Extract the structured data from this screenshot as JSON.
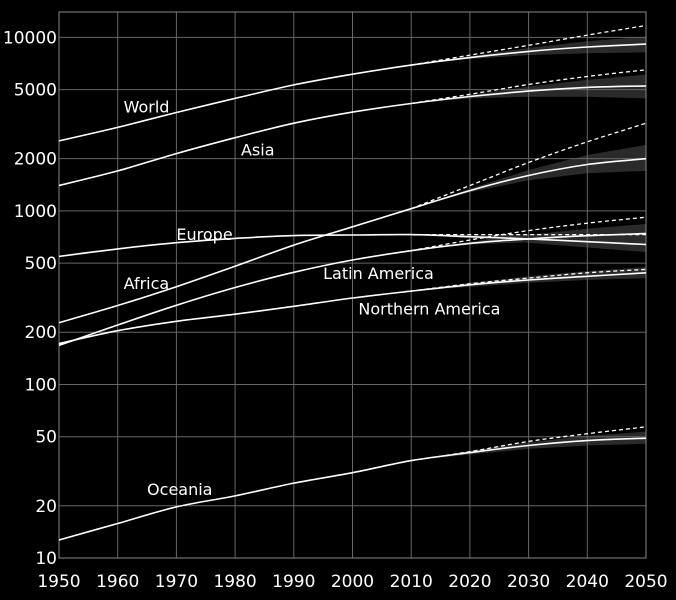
{
  "chart_data": {
    "type": "line",
    "title": "",
    "xlabel": "",
    "ylabel": "",
    "y_scale": "log",
    "grid": true,
    "background": "#000000",
    "line_color": "#ffffff",
    "grid_color": "#666666",
    "band_color": "#2a2a2a",
    "xlim": [
      1950,
      2050
    ],
    "ylim": [
      10,
      14000
    ],
    "x_ticks": [
      1950,
      1960,
      1970,
      1980,
      1990,
      2000,
      2010,
      2020,
      2030,
      2040,
      2050
    ],
    "y_ticks": [
      10,
      20,
      50,
      100,
      200,
      500,
      1000,
      2000,
      5000,
      10000
    ],
    "x": [
      1950,
      1960,
      1970,
      1980,
      1990,
      2000,
      2010,
      2020,
      2030,
      2040,
      2050
    ],
    "series": [
      {
        "name": "World",
        "values": [
          2530,
          3030,
          3690,
          4450,
          5320,
          6130,
          6920,
          7650,
          8300,
          8800,
          9150
        ],
        "projection_high": [
          null,
          null,
          null,
          null,
          null,
          null,
          6920,
          7900,
          9000,
          10300,
          11700
        ],
        "band_low": [
          null,
          null,
          null,
          null,
          null,
          null,
          6920,
          7500,
          7900,
          8100,
          8200
        ],
        "band_high": [
          null,
          null,
          null,
          null,
          null,
          null,
          6920,
          7800,
          8700,
          9500,
          10100
        ]
      },
      {
        "name": "Asia",
        "values": [
          1400,
          1700,
          2140,
          2640,
          3200,
          3710,
          4160,
          4560,
          4900,
          5150,
          5250
        ],
        "projection_high": [
          null,
          null,
          null,
          null,
          null,
          null,
          4160,
          4700,
          5350,
          5950,
          6500
        ],
        "band_low": [
          null,
          null,
          null,
          null,
          null,
          null,
          4160,
          4450,
          4550,
          4550,
          4450
        ],
        "band_high": [
          null,
          null,
          null,
          null,
          null,
          null,
          4160,
          4650,
          5200,
          5700,
          6100
        ]
      },
      {
        "name": "Africa",
        "values": [
          227,
          285,
          366,
          480,
          635,
          810,
          1030,
          1310,
          1600,
          1850,
          2000
        ],
        "projection_high": [
          null,
          null,
          null,
          null,
          null,
          null,
          1030,
          1400,
          1900,
          2500,
          3200
        ],
        "band_low": [
          null,
          null,
          null,
          null,
          null,
          null,
          1030,
          1280,
          1500,
          1650,
          1700
        ],
        "band_high": [
          null,
          null,
          null,
          null,
          null,
          null,
          1030,
          1340,
          1720,
          2100,
          2400
        ]
      },
      {
        "name": "Europe",
        "values": [
          547,
          604,
          656,
          694,
          721,
          726,
          730,
          710,
          690,
          665,
          640
        ],
        "projection_high": [
          null,
          null,
          null,
          null,
          null,
          null,
          730,
          730,
          730,
          730,
          730
        ],
        "band_low": [
          null,
          null,
          null,
          null,
          null,
          null,
          730,
          695,
          655,
          615,
          580
        ],
        "band_high": [
          null,
          null,
          null,
          null,
          null,
          null,
          730,
          725,
          730,
          745,
          760
        ]
      },
      {
        "name": "Latin America",
        "values": [
          168,
          220,
          286,
          362,
          443,
          521,
          590,
          650,
          690,
          720,
          740
        ],
        "projection_high": [
          null,
          null,
          null,
          null,
          null,
          null,
          590,
          680,
          770,
          850,
          920
        ],
        "band_low": [
          null,
          null,
          null,
          null,
          null,
          null,
          590,
          640,
          660,
          670,
          660
        ],
        "band_high": [
          null,
          null,
          null,
          null,
          null,
          null,
          590,
          665,
          730,
          790,
          840
        ]
      },
      {
        "name": "Northern America",
        "values": [
          172,
          204,
          231,
          254,
          282,
          315,
          345,
          375,
          400,
          420,
          440
        ],
        "projection_high": [
          null,
          null,
          null,
          null,
          null,
          null,
          345,
          380,
          410,
          440,
          460
        ],
        "band_low": [
          null,
          null,
          null,
          null,
          null,
          null,
          345,
          365,
          385,
          400,
          410
        ],
        "band_high": [
          null,
          null,
          null,
          null,
          null,
          null,
          345,
          385,
          420,
          450,
          475
        ]
      },
      {
        "name": "Oceania",
        "values": [
          12.7,
          15.8,
          19.7,
          22.8,
          27,
          31,
          36.4,
          40.5,
          44.5,
          47.5,
          49
        ],
        "projection_high": [
          null,
          null,
          null,
          null,
          null,
          null,
          36.4,
          41,
          47,
          52,
          57
        ],
        "band_low": [
          null,
          null,
          null,
          null,
          null,
          null,
          36.4,
          39.5,
          42.5,
          44.5,
          45.5
        ],
        "band_high": [
          null,
          null,
          null,
          null,
          null,
          null,
          36.4,
          41.5,
          46.5,
          50.5,
          53.5
        ]
      }
    ],
    "annotations": [
      {
        "text": "World",
        "x": 1961,
        "y": 3700
      },
      {
        "text": "Asia",
        "x": 1981,
        "y": 2080
      },
      {
        "text": "Europe",
        "x": 1970,
        "y": 680
      },
      {
        "text": "Africa",
        "x": 1961,
        "y": 355
      },
      {
        "text": "Latin America",
        "x": 1995,
        "y": 405
      },
      {
        "text": "Northern America",
        "x": 2001,
        "y": 253
      },
      {
        "text": "Oceania",
        "x": 1965,
        "y": 23
      }
    ]
  }
}
